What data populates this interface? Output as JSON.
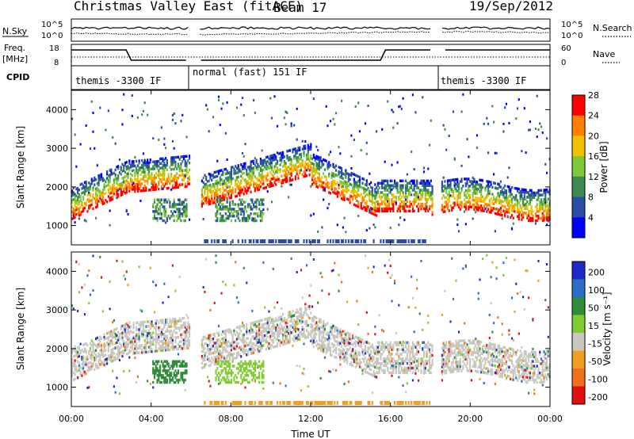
{
  "header": {
    "title": "Christmas Valley East (fitACF)",
    "beam": "Beam 17",
    "date": "19/Sep/2012"
  },
  "noise_panel": {
    "left_label": "N.Sky",
    "right_label": "N.Search",
    "left_ticks": [
      "10^5",
      "10^0"
    ],
    "right_ticks": [
      "10^5",
      "10^0"
    ]
  },
  "freq_panel": {
    "left_label_1": "Freq.",
    "left_label_2": "[MHz]",
    "right_label": "Nave",
    "left_ticks": [
      "18",
      "8"
    ],
    "right_ticks": [
      "60",
      "0"
    ]
  },
  "cpid_panel": {
    "label": "CPID",
    "segments": [
      "themis -3300 IF",
      "normal (fast) 151 IF",
      "themis -3300 IF"
    ]
  },
  "chart_data": [
    {
      "type": "heatmap",
      "name": "power",
      "ylabel": "Slant Range [km]",
      "yticks": [
        1000,
        2000,
        3000,
        4000
      ],
      "ylim": [
        500,
        4500
      ],
      "colorbar_label": "Power [dB]",
      "colorbar_ticks": [
        4,
        8,
        12,
        16,
        20,
        24,
        28
      ],
      "colorbar_colors": [
        "#0000ff",
        "#2a4ea6",
        "#3d8a50",
        "#7ec83a",
        "#f2c200",
        "#ff8000",
        "#ff0000"
      ]
    },
    {
      "type": "heatmap",
      "name": "velocity",
      "ylabel": "Slant Range [km]",
      "yticks": [
        1000,
        2000,
        3000,
        4000
      ],
      "ylim": [
        500,
        4500
      ],
      "colorbar_label": "Velocity [m s⁻¹]",
      "colorbar_ticks": [
        "200",
        "100",
        "50",
        "15",
        "-15",
        "-50",
        "-100",
        "-200"
      ],
      "colorbar_colors": [
        "#1e28c8",
        "#2c6ec8",
        "#2f8c3a",
        "#80cc33",
        "#c8c8c0",
        "#f0a020",
        "#f07020",
        "#e01010"
      ]
    }
  ],
  "xaxis": {
    "label": "Time UT",
    "ticks": [
      "00:00",
      "04:00",
      "08:00",
      "12:00",
      "16:00",
      "20:00",
      "00:00"
    ]
  }
}
